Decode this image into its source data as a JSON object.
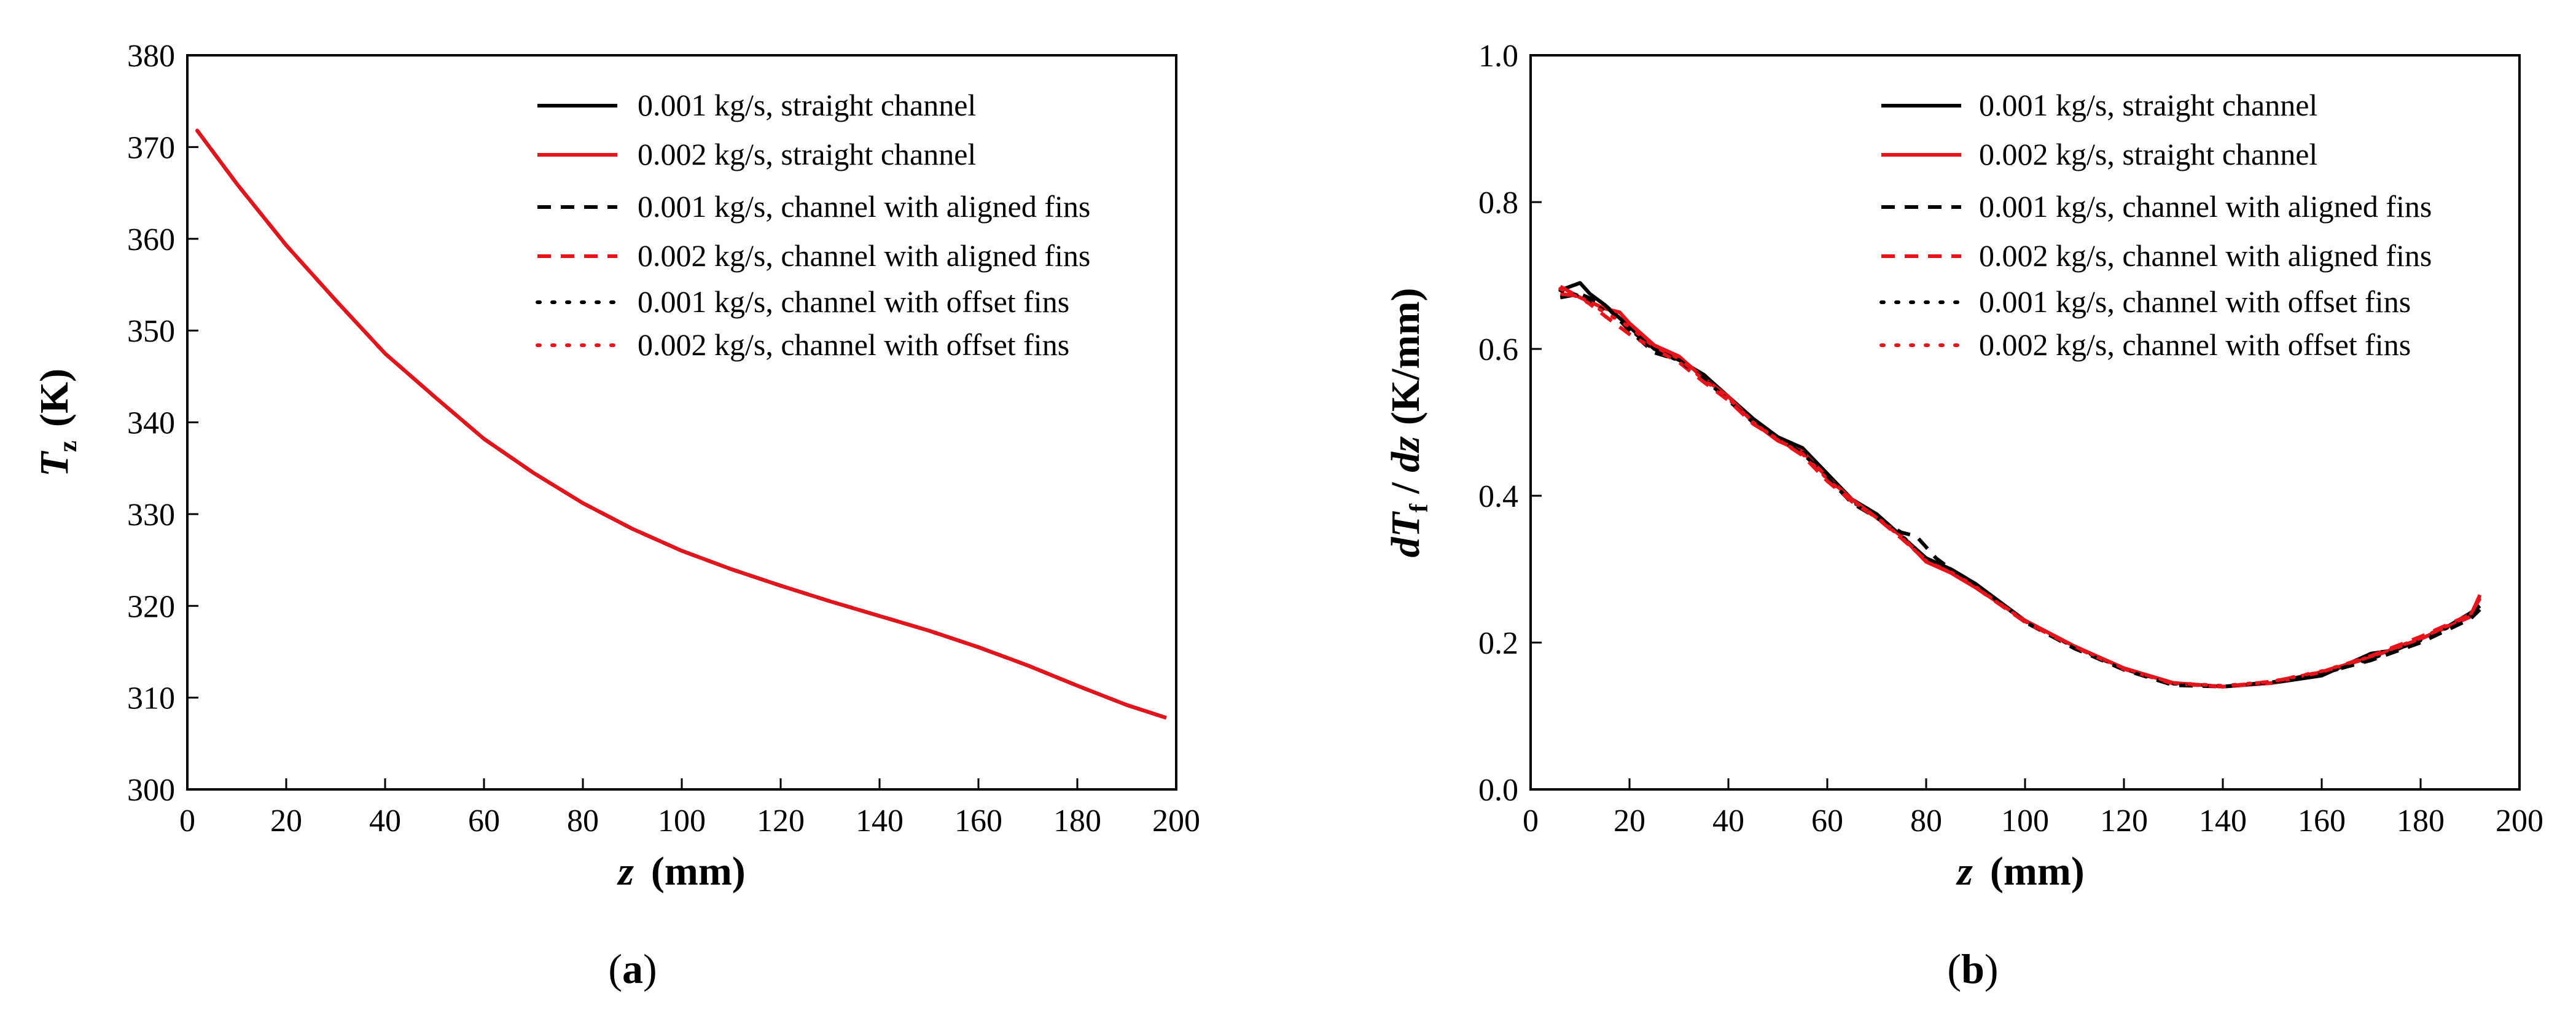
{
  "colors": {
    "black": "#000000",
    "red": "#e8141c"
  },
  "chart_data": [
    {
      "type": "line",
      "panel": "a",
      "caption": "(a)",
      "caption_letter": "a",
      "ylabel_symbol": "T",
      "ylabel_sub": "z",
      "ylabel_unit": "(K)",
      "xlabel_symbol": "z",
      "xlabel_unit": "(mm)",
      "xlim": [
        0,
        200
      ],
      "ylim": [
        300,
        380
      ],
      "xticks": [
        0,
        20,
        40,
        60,
        80,
        100,
        120,
        140,
        160,
        180,
        200
      ],
      "yticks": [
        300,
        310,
        320,
        330,
        340,
        350,
        360,
        370,
        380
      ],
      "legend_position": "top-right",
      "series": [
        {
          "name": "0.001 kg/s, straight channel",
          "color": "black",
          "style": "solid",
          "x": [
            2,
            10,
            20,
            30,
            40,
            50,
            60,
            70,
            80,
            90,
            100,
            110,
            120,
            130,
            140,
            150,
            160,
            170,
            180,
            190,
            198
          ],
          "y": [
            371.8,
            366,
            359.3,
            353.3,
            347.5,
            342.8,
            338.2,
            334.5,
            331.2,
            328.4,
            326,
            324,
            322.2,
            320.5,
            318.9,
            317.3,
            315.5,
            313.5,
            311.3,
            309.2,
            307.8
          ]
        },
        {
          "name": "0.002 kg/s, straight channel",
          "color": "red",
          "style": "solid",
          "x": [
            2,
            10,
            20,
            30,
            40,
            50,
            60,
            70,
            80,
            90,
            100,
            110,
            120,
            130,
            140,
            150,
            160,
            170,
            180,
            190,
            198
          ],
          "y": [
            371.8,
            366,
            359.3,
            353.3,
            347.5,
            342.8,
            338.2,
            334.5,
            331.2,
            328.4,
            326,
            324,
            322.2,
            320.5,
            318.9,
            317.3,
            315.5,
            313.5,
            311.3,
            309.2,
            307.8
          ]
        },
        {
          "name": "0.001 kg/s, channel with aligned fins",
          "color": "black",
          "style": "dashed",
          "x": [
            2,
            10,
            20,
            30,
            40,
            50,
            60,
            70,
            80,
            90,
            100,
            110,
            120,
            130,
            140,
            150,
            160,
            170,
            180,
            190,
            198
          ],
          "y": [
            371.8,
            366,
            359.3,
            353.3,
            347.5,
            342.8,
            338.2,
            334.5,
            331.2,
            328.4,
            326,
            324,
            322.2,
            320.5,
            318.9,
            317.3,
            315.5,
            313.5,
            311.3,
            309.2,
            307.8
          ]
        },
        {
          "name": "0.002 kg/s, channel with aligned fins",
          "color": "red",
          "style": "dashed",
          "x": [
            2,
            10,
            20,
            30,
            40,
            50,
            60,
            70,
            80,
            90,
            100,
            110,
            120,
            130,
            140,
            150,
            160,
            170,
            180,
            190,
            198
          ],
          "y": [
            371.8,
            366,
            359.3,
            353.3,
            347.5,
            342.8,
            338.2,
            334.5,
            331.2,
            328.4,
            326,
            324,
            322.2,
            320.5,
            318.9,
            317.3,
            315.5,
            313.5,
            311.3,
            309.2,
            307.8
          ]
        },
        {
          "name": "0.001 kg/s, channel with offset fins",
          "color": "black",
          "style": "dotted",
          "x": [
            2,
            10,
            20,
            30,
            40,
            50,
            60,
            70,
            80,
            90,
            100,
            110,
            120,
            130,
            140,
            150,
            160,
            170,
            180,
            190,
            198
          ],
          "y": [
            371.8,
            366,
            359.3,
            353.3,
            347.5,
            342.8,
            338.2,
            334.5,
            331.2,
            328.4,
            326,
            324,
            322.2,
            320.5,
            318.9,
            317.3,
            315.5,
            313.5,
            311.3,
            309.2,
            307.8
          ]
        },
        {
          "name": "0.002 kg/s, channel with offset fins",
          "color": "red",
          "style": "dotted",
          "x": [
            2,
            10,
            20,
            30,
            40,
            50,
            60,
            70,
            80,
            90,
            100,
            110,
            120,
            130,
            140,
            150,
            160,
            170,
            180,
            190,
            198
          ],
          "y": [
            371.8,
            366,
            359.3,
            353.3,
            347.5,
            342.8,
            338.2,
            334.5,
            331.2,
            328.4,
            326,
            324,
            322.2,
            320.5,
            318.9,
            317.3,
            315.5,
            313.5,
            311.3,
            309.2,
            307.8
          ]
        }
      ]
    },
    {
      "type": "line",
      "panel": "b",
      "caption": "(b)",
      "caption_letter": "b",
      "ylabel_d1": "dT",
      "ylabel_sub": "f",
      "ylabel_sep": " / ",
      "ylabel_d2": "dz",
      "ylabel_unit": "(K/mm)",
      "xlabel_symbol": "z",
      "xlabel_unit": "(mm)",
      "xlim": [
        0,
        200
      ],
      "ylim": [
        0.0,
        1.0
      ],
      "xticks": [
        0,
        20,
        40,
        60,
        80,
        100,
        120,
        140,
        160,
        180,
        200
      ],
      "yticks": [
        0.0,
        0.2,
        0.4,
        0.6,
        0.8,
        1.0
      ],
      "ytick_labels": [
        "0.0",
        "0.2",
        "0.4",
        "0.6",
        "0.8",
        "1.0"
      ],
      "legend_position": "top-right",
      "series": [
        {
          "name": "0.001 kg/s, straight channel",
          "color": "black",
          "style": "solid",
          "x": [
            6,
            8,
            10,
            12,
            15,
            20,
            25,
            30,
            35,
            40,
            45,
            50,
            55,
            60,
            65,
            70,
            75,
            80,
            85,
            90,
            100,
            110,
            120,
            130,
            140,
            150,
            160,
            165,
            170,
            175,
            180,
            185,
            190,
            192
          ],
          "y": [
            0.68,
            0.685,
            0.69,
            0.675,
            0.66,
            0.63,
            0.6,
            0.585,
            0.565,
            0.535,
            0.505,
            0.48,
            0.465,
            0.43,
            0.395,
            0.375,
            0.345,
            0.315,
            0.3,
            0.28,
            0.23,
            0.195,
            0.165,
            0.145,
            0.14,
            0.145,
            0.155,
            0.17,
            0.185,
            0.19,
            0.205,
            0.22,
            0.24,
            0.25
          ]
        },
        {
          "name": "0.002 kg/s, straight channel",
          "color": "red",
          "style": "solid",
          "x": [
            6,
            10,
            15,
            18,
            20,
            25,
            30,
            35,
            40,
            45,
            50,
            55,
            60,
            65,
            70,
            75,
            80,
            85,
            90,
            100,
            110,
            120,
            130,
            140,
            150,
            160,
            170,
            180,
            190,
            192
          ],
          "y": [
            0.685,
            0.67,
            0.655,
            0.65,
            0.635,
            0.605,
            0.59,
            0.56,
            0.535,
            0.5,
            0.475,
            0.46,
            0.425,
            0.395,
            0.37,
            0.345,
            0.31,
            0.295,
            0.275,
            0.23,
            0.195,
            0.165,
            0.145,
            0.14,
            0.145,
            0.16,
            0.18,
            0.205,
            0.235,
            0.265
          ]
        },
        {
          "name": "0.001 kg/s, channel with aligned fins",
          "color": "black",
          "style": "dashed",
          "x": [
            6,
            10,
            15,
            20,
            25,
            30,
            35,
            40,
            45,
            50,
            55,
            60,
            65,
            70,
            75,
            78,
            80,
            82,
            85,
            90,
            100,
            110,
            120,
            130,
            140,
            150,
            160,
            170,
            180,
            190,
            192
          ],
          "y": [
            0.67,
            0.675,
            0.66,
            0.625,
            0.595,
            0.585,
            0.56,
            0.53,
            0.5,
            0.478,
            0.458,
            0.425,
            0.39,
            0.37,
            0.35,
            0.345,
            0.33,
            0.315,
            0.3,
            0.28,
            0.228,
            0.192,
            0.163,
            0.142,
            0.14,
            0.146,
            0.158,
            0.176,
            0.2,
            0.232,
            0.245
          ]
        },
        {
          "name": "0.002 kg/s, channel with aligned fins",
          "color": "red",
          "style": "dashed",
          "x": [
            6,
            10,
            15,
            20,
            25,
            30,
            35,
            40,
            45,
            50,
            55,
            60,
            65,
            70,
            75,
            80,
            85,
            90,
            100,
            110,
            120,
            130,
            140,
            150,
            160,
            170,
            180,
            190,
            192
          ],
          "y": [
            0.675,
            0.672,
            0.645,
            0.62,
            0.6,
            0.582,
            0.555,
            0.53,
            0.498,
            0.477,
            0.455,
            0.42,
            0.392,
            0.37,
            0.342,
            0.312,
            0.295,
            0.275,
            0.228,
            0.194,
            0.164,
            0.144,
            0.14,
            0.147,
            0.16,
            0.182,
            0.208,
            0.238,
            0.26
          ]
        },
        {
          "name": "0.001 kg/s, channel with offset fins",
          "color": "black",
          "style": "dotted",
          "x": [
            6,
            10,
            15,
            20,
            25,
            30,
            35,
            40,
            45,
            50,
            55,
            60,
            65,
            70,
            75,
            80,
            85,
            90,
            100,
            110,
            120,
            130,
            140,
            150,
            160,
            170,
            180,
            190,
            192
          ],
          "y": [
            0.68,
            0.672,
            0.652,
            0.628,
            0.598,
            0.584,
            0.56,
            0.532,
            0.502,
            0.479,
            0.46,
            0.426,
            0.392,
            0.372,
            0.346,
            0.314,
            0.298,
            0.278,
            0.229,
            0.194,
            0.164,
            0.144,
            0.141,
            0.146,
            0.157,
            0.178,
            0.203,
            0.235,
            0.25
          ]
        },
        {
          "name": "0.002 kg/s, channel with offset fins",
          "color": "red",
          "style": "dotted",
          "x": [
            6,
            10,
            15,
            20,
            25,
            30,
            35,
            40,
            45,
            50,
            55,
            60,
            65,
            70,
            75,
            80,
            85,
            90,
            100,
            110,
            120,
            130,
            140,
            150,
            160,
            170,
            180,
            190,
            192
          ],
          "y": [
            0.682,
            0.669,
            0.65,
            0.63,
            0.603,
            0.587,
            0.558,
            0.533,
            0.5,
            0.476,
            0.457,
            0.423,
            0.393,
            0.371,
            0.343,
            0.311,
            0.296,
            0.276,
            0.229,
            0.195,
            0.165,
            0.145,
            0.141,
            0.147,
            0.161,
            0.181,
            0.206,
            0.237,
            0.262
          ]
        }
      ]
    }
  ]
}
